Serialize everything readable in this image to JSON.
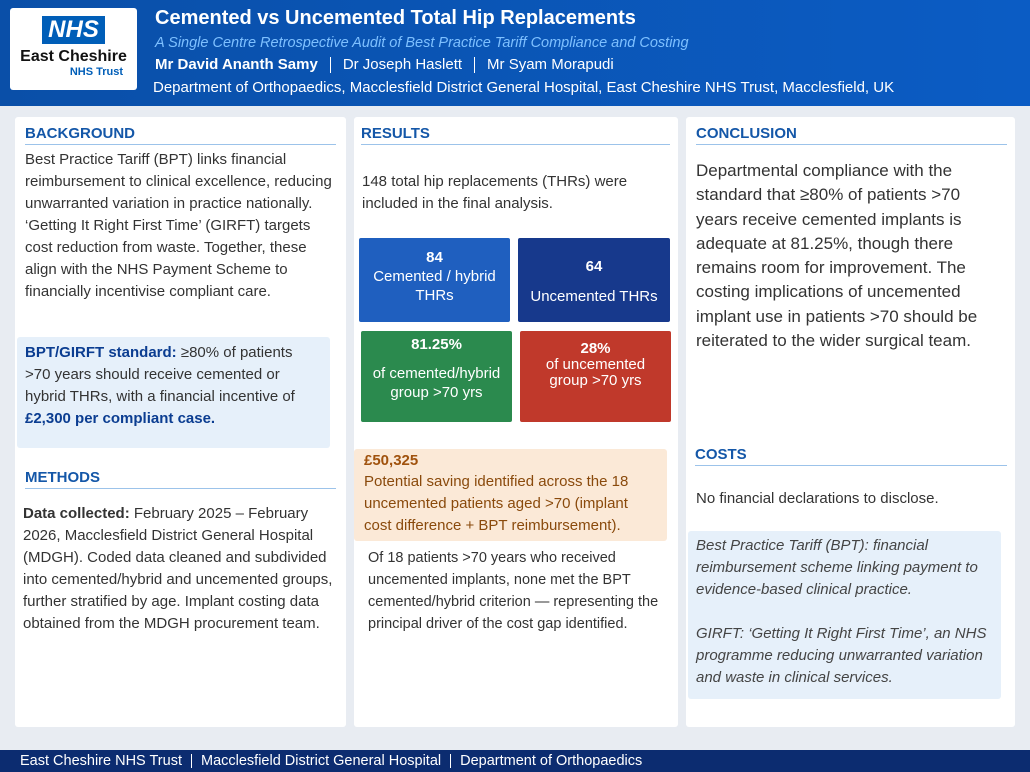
{
  "header": {
    "logo_nhs": "NHS",
    "logo_org": "East Cheshire",
    "logo_trust": "NHS Trust",
    "title": "Cemented vs Uncemented Total Hip Replacements",
    "subtitle": "A Single Centre Retrospective Audit of Best Practice Tariff Compliance and Costing",
    "authors": [
      "Mr David Ananth Samy",
      "Dr Joseph Haslett",
      "Mr Syam Morapudi"
    ],
    "affiliation": "Department of Orthopaedics, Macclesfield District General Hospital, East Cheshire NHS Trust, Macclesfield, UK"
  },
  "background": {
    "heading": "BACKGROUND",
    "text": "Best Practice Tariff (BPT) links financial reimbursement to clinical excellence, reducing unwarranted variation in practice nationally. ‘Getting It Right First Time’ (GIRFT) targets cost reduction from waste. Together, these align with the NHS Payment Scheme to financially incentivise compliant care.",
    "standard_label": "BPT/GIRFT standard:",
    "standard_text": " ≥80% of patients >70 years should receive cemented or hybrid THRs, with a financial incentive of ",
    "standard_bold": "£2,300 per compliant case."
  },
  "methods": {
    "heading": "METHODS",
    "label": "Data collected:",
    "text": " February 2025 – February 2026, Macclesfield District General Hospital (MDGH). Coded data cleaned and subdivided into cemented/hybrid and uncemented groups, further stratified by age. Implant costing data obtained from the MDGH procurement team."
  },
  "results": {
    "heading": "RESULTS",
    "intro": "148 total hip replacements (THRs) were included in the final analysis.",
    "stats": [
      {
        "value": "84",
        "label": "Cemented / hybrid THRs"
      },
      {
        "value": "64",
        "label": "Uncemented THRs"
      },
      {
        "value": "81.25%",
        "label": "of cemented/hybrid group >70 yrs"
      },
      {
        "value": "28%",
        "label": "of uncemented group >70 yrs"
      }
    ],
    "saving_value": "£50,325",
    "saving_text": "Potential saving identified across the 18 uncemented patients aged >70 (implant cost difference + BPT reimbursement).",
    "outcome": "Of 18 patients >70 years who received uncemented implants, none met the BPT cemented/hybrid criterion — representing the principal driver of the cost gap identified."
  },
  "conclusion": {
    "heading": "CONCLUSION",
    "text": "Departmental compliance with the standard that ≥80% of patients >70 years receive cemented implants is adequate at 81.25%, though there remains room for improvement. The costing implications of uncemented implant use in patients >70 should be reiterated to the wider surgical team."
  },
  "costs": {
    "heading": "COSTS",
    "text": "No financial declarations to disclose.",
    "glossary": [
      "Best Practice Tariff (BPT): financial reimbursement scheme linking payment to evidence-based clinical practice.",
      "GIRFT: ‘Getting It Right First Time’, an NHS programme reducing unwarranted variation and waste in clinical services."
    ]
  },
  "footer": {
    "items": [
      "East Cheshire NHS Trust",
      "Macclesfield District General Hospital",
      "Department of Orthopaedics"
    ]
  }
}
